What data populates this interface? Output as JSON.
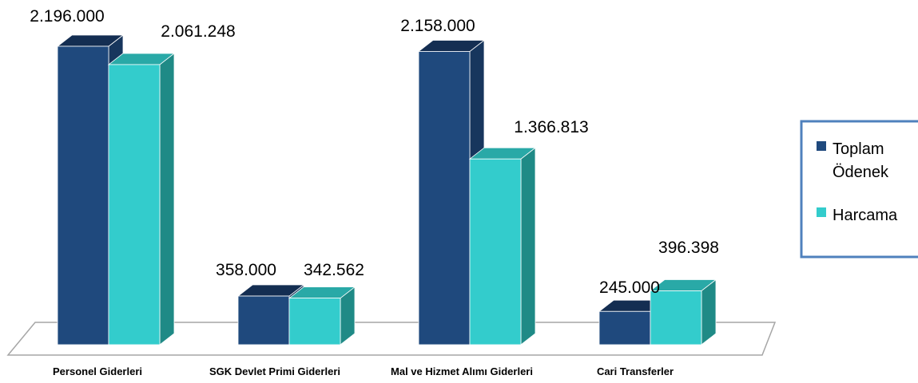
{
  "chart_data": {
    "type": "bar",
    "categories": [
      "Personel Giderleri",
      "SGK Devlet Primi Giderleri",
      "Mal ve Hizmet Alımı Giderleri",
      "Cari Transferler"
    ],
    "series": [
      {
        "name": "Toplam Ödenek",
        "values": [
          2196000,
          358000,
          2158000,
          245000
        ],
        "labels": [
          "2.196.000",
          "358.000",
          "2.158.000",
          "245.000"
        ],
        "color": "#1f497d"
      },
      {
        "name": "Harcama",
        "values": [
          2061248,
          342562,
          1366813,
          396398
        ],
        "labels": [
          "2.061.248",
          "342.562",
          "1.366.813",
          "396.398"
        ],
        "color": "#33cccc"
      }
    ],
    "ylim": [
      0,
      2300000
    ],
    "legend_position": "right",
    "grid": false,
    "style": "3d-clustered-column"
  },
  "legend": {
    "items": [
      {
        "line1": "Toplam",
        "line2": "Ödenek"
      },
      {
        "line1": "Harcama",
        "line2": ""
      }
    ]
  },
  "colors": {
    "series1_front": "#1f497d",
    "series1_side": "#17365d",
    "series1_top": "#142e52",
    "series2_front": "#33cccc",
    "series2_side": "#1f8a86",
    "series2_top": "#29a9a7",
    "floor_stroke": "#a6a6a6",
    "legend_border": "#4f81bd"
  }
}
